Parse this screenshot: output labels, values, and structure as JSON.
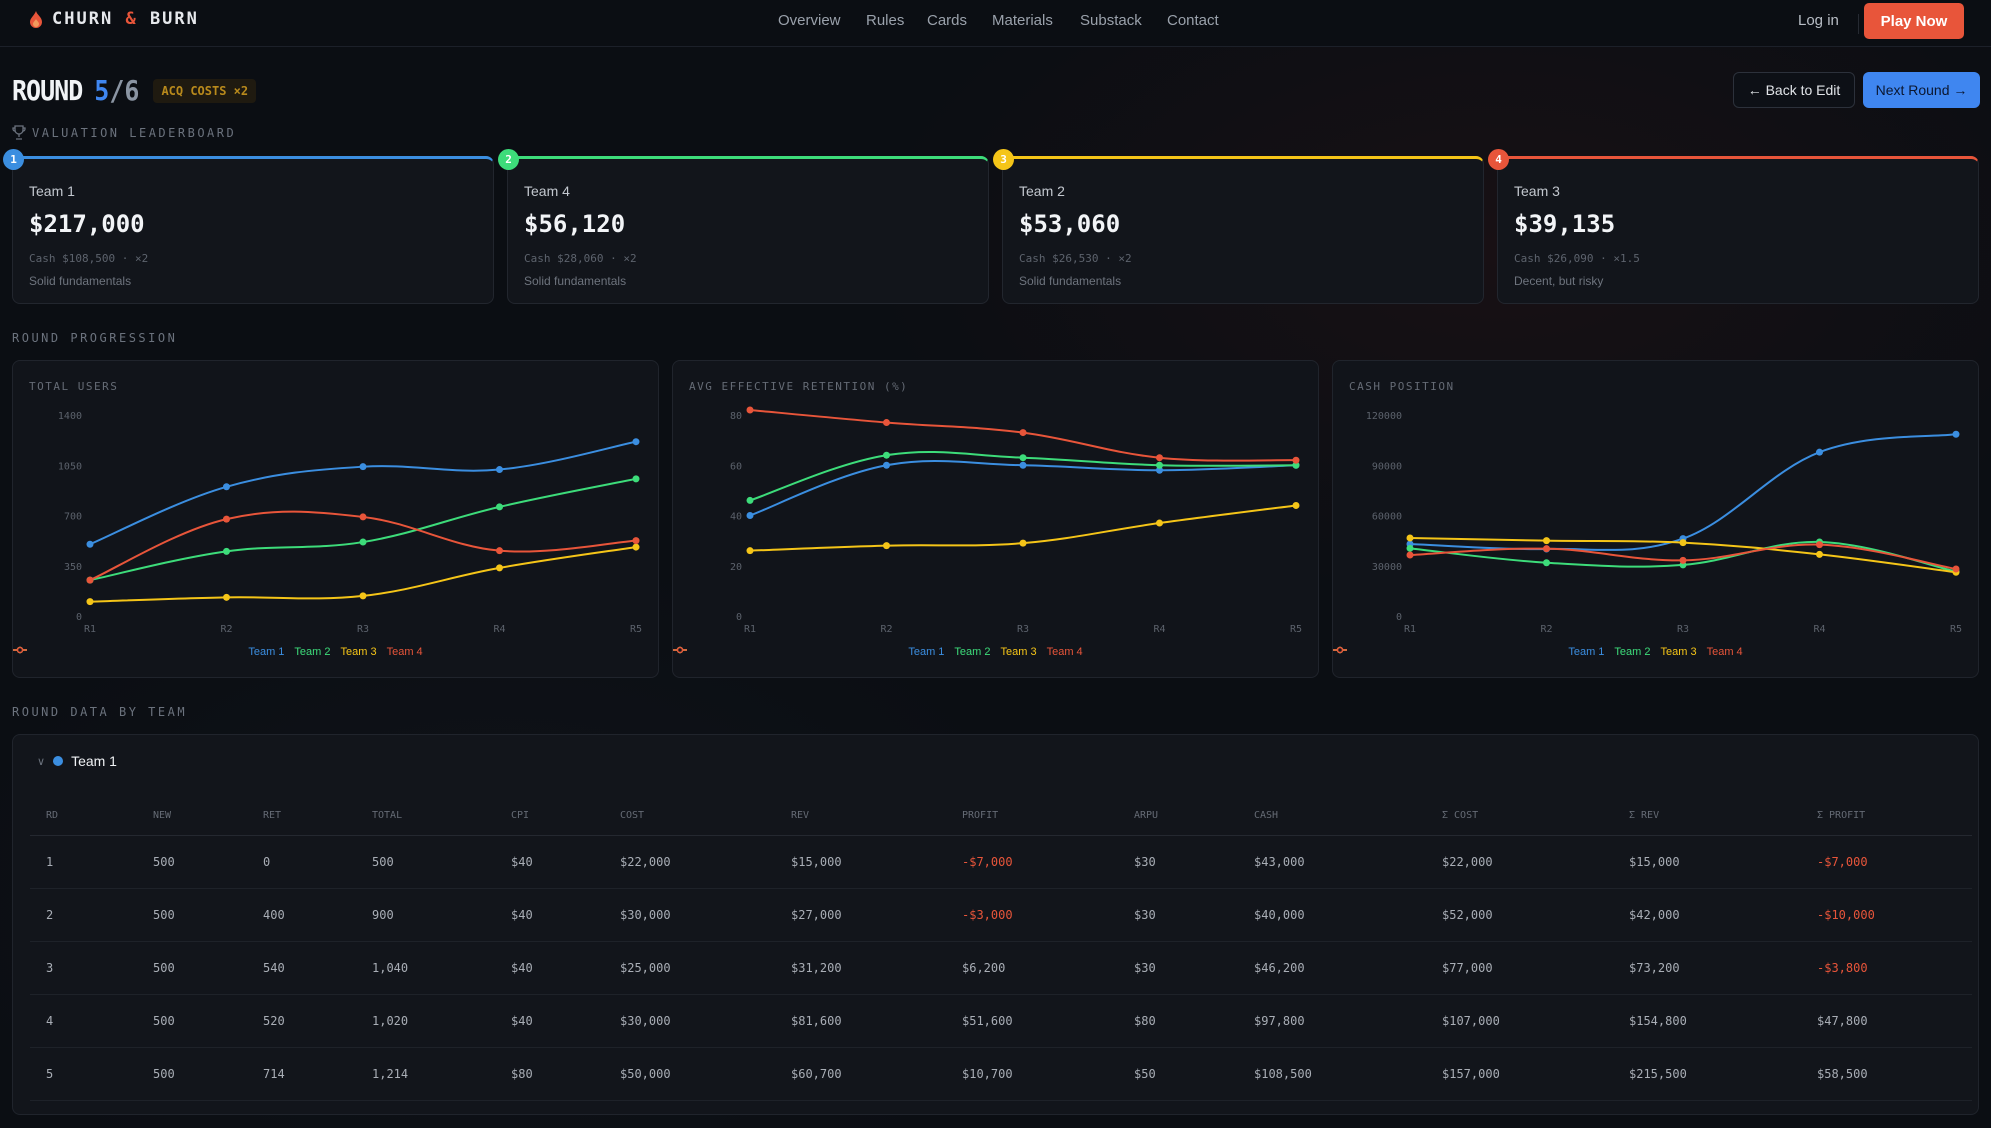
{
  "nav": {
    "brand_a": "CHURN",
    "brand_amp": "&",
    "brand_b": "BURN",
    "links": [
      "Overview",
      "Rules",
      "Cards",
      "Materials",
      "Substack",
      "Contact"
    ],
    "login": "Log in",
    "play": "Play Now"
  },
  "round": {
    "label": "ROUND",
    "current": "5",
    "total": "/6",
    "badge": "ACQ COSTS ×2",
    "back": "← Back to Edit",
    "next": "Next Round →"
  },
  "colors": {
    "Team 1": "#3b8ee0",
    "Team 2": "#3ddc7a",
    "Team 3": "#f5c518",
    "Team 4": "#e8553a",
    "accent": "#e8553a",
    "primary": "#3f86f0"
  },
  "leaderboard": {
    "title": "VALUATION LEADERBOARD",
    "cards": [
      {
        "rank": "1",
        "team": "Team 1",
        "value": "$217,000",
        "cash": "Cash $108,500 · ×2",
        "tag": "Solid fundamentals",
        "color": "#3b8ee0"
      },
      {
        "rank": "2",
        "team": "Team 4",
        "value": "$56,120",
        "cash": "Cash $28,060 · ×2",
        "tag": "Solid fundamentals",
        "color": "#3ddc7a"
      },
      {
        "rank": "3",
        "team": "Team 2",
        "value": "$53,060",
        "cash": "Cash $26,530 · ×2",
        "tag": "Solid fundamentals",
        "color": "#f5c518"
      },
      {
        "rank": "4",
        "team": "Team 3",
        "value": "$39,135",
        "cash": "Cash $26,090 · ×1.5",
        "tag": "Decent, but risky",
        "color": "#e8553a"
      }
    ]
  },
  "progression_title": "ROUND PROGRESSION",
  "chart_data": [
    {
      "type": "line",
      "title": "TOTAL USERS",
      "categories": [
        "R1",
        "R2",
        "R3",
        "R4",
        "R5"
      ],
      "yticks": [
        0,
        350,
        700,
        1050,
        1400
      ],
      "ylim": [
        0,
        1400
      ],
      "legend": "bottom",
      "series": [
        {
          "name": "Team 1",
          "values": [
            500,
            900,
            1040,
            1020,
            1214
          ]
        },
        {
          "name": "Team 2",
          "values": [
            250,
            450,
            515,
            760,
            955
          ]
        },
        {
          "name": "Team 3",
          "values": [
            100,
            130,
            140,
            335,
            480
          ]
        },
        {
          "name": "Team 4",
          "values": [
            250,
            675,
            690,
            455,
            525
          ]
        }
      ]
    },
    {
      "type": "line",
      "title": "AVG EFFECTIVE RETENTION (%)",
      "categories": [
        "R1",
        "R2",
        "R3",
        "R4",
        "R5"
      ],
      "yticks": [
        0,
        20,
        40,
        60,
        80
      ],
      "ylim": [
        0,
        80
      ],
      "legend": "bottom",
      "series": [
        {
          "name": "Team 1",
          "values": [
            40,
            60,
            60,
            58,
            60
          ]
        },
        {
          "name": "Team 2",
          "values": [
            46,
            64,
            63,
            60,
            60
          ]
        },
        {
          "name": "Team 3",
          "values": [
            26,
            28,
            29,
            37,
            44
          ]
        },
        {
          "name": "Team 4",
          "values": [
            82,
            77,
            73,
            63,
            62
          ]
        }
      ]
    },
    {
      "type": "line",
      "title": "CASH POSITION",
      "categories": [
        "R1",
        "R2",
        "R3",
        "R4",
        "R5"
      ],
      "yticks": [
        0,
        30000,
        60000,
        90000,
        120000
      ],
      "ylim": [
        0,
        120000
      ],
      "legend": "bottom",
      "series": [
        {
          "name": "Team 1",
          "values": [
            43000,
            40000,
            46200,
            97800,
            108500
          ]
        },
        {
          "name": "Team 2",
          "values": [
            40400,
            31800,
            30500,
            44200,
            26530
          ]
        },
        {
          "name": "Team 3",
          "values": [
            46600,
            45000,
            43800,
            36800,
            26090
          ]
        },
        {
          "name": "Team 4",
          "values": [
            36400,
            40200,
            33200,
            42600,
            28060
          ]
        }
      ]
    }
  ],
  "table": {
    "title": "ROUND DATA BY TEAM",
    "team": "Team 1",
    "columns": [
      "RD",
      "NEW",
      "RET",
      "TOTAL",
      "CPI",
      "COST",
      "REV",
      "PROFIT",
      "ARPU",
      "CASH",
      "Σ COST",
      "Σ REV",
      "Σ PROFIT"
    ],
    "rows": [
      [
        "1",
        "500",
        "0",
        "500",
        "$40",
        "$22,000",
        "$15,000",
        "-$7,000",
        "$30",
        "$43,000",
        "$22,000",
        "$15,000",
        "-$7,000"
      ],
      [
        "2",
        "500",
        "400",
        "900",
        "$40",
        "$30,000",
        "$27,000",
        "-$3,000",
        "$30",
        "$40,000",
        "$52,000",
        "$42,000",
        "-$10,000"
      ],
      [
        "3",
        "500",
        "540",
        "1,040",
        "$40",
        "$25,000",
        "$31,200",
        "$6,200",
        "$30",
        "$46,200",
        "$77,000",
        "$73,200",
        "-$3,800"
      ],
      [
        "4",
        "500",
        "520",
        "1,020",
        "$40",
        "$30,000",
        "$81,600",
        "$51,600",
        "$80",
        "$97,800",
        "$107,000",
        "$154,800",
        "$47,800"
      ],
      [
        "5",
        "500",
        "714",
        "1,214",
        "$80",
        "$50,000",
        "$60,700",
        "$10,700",
        "$50",
        "$108,500",
        "$157,000",
        "$215,500",
        "$58,500"
      ]
    ]
  }
}
